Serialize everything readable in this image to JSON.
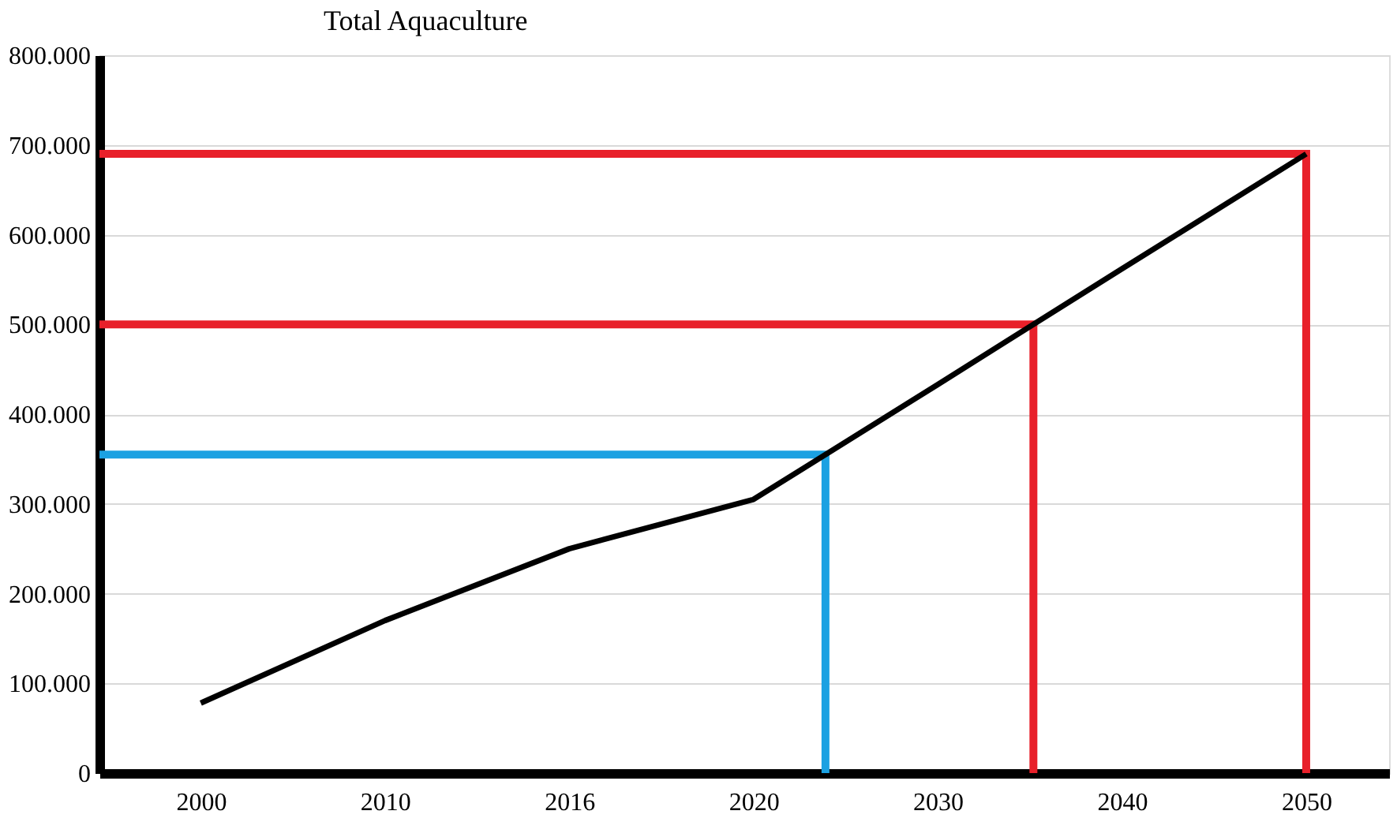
{
  "chart_data": {
    "type": "line",
    "title": "Total Aquaculture",
    "categories": [
      "2000",
      "2010",
      "2016",
      "2020",
      "2030",
      "2040",
      "2050"
    ],
    "series": [
      {
        "color": "#000000",
        "values": [
          78000,
          170000,
          250000,
          305000,
          433000,
          562000,
          690000
        ]
      }
    ],
    "ylim": [
      0,
      800000
    ],
    "yticks": [
      {
        "value": 0,
        "label": "0"
      },
      {
        "value": 100000,
        "label": "100.000"
      },
      {
        "value": 200000,
        "label": "200.000"
      },
      {
        "value": 300000,
        "label": "300.000"
      },
      {
        "value": 400000,
        "label": "400.000"
      },
      {
        "value": 500000,
        "label": "500.000"
      },
      {
        "value": 600000,
        "label": "600.000"
      },
      {
        "value": 700000,
        "label": "700.000"
      },
      {
        "value": 800000,
        "label": "800.000"
      }
    ],
    "ref_lines": [
      {
        "axis": "y",
        "value": 690000,
        "color": "#e8202a"
      },
      {
        "axis": "y",
        "value": 500000,
        "color": "#e8202a"
      },
      {
        "axis": "y",
        "value": 355000,
        "color": "#1ba1e2"
      }
    ],
    "grid": "y",
    "marker": "none",
    "line_style": "solid"
  }
}
